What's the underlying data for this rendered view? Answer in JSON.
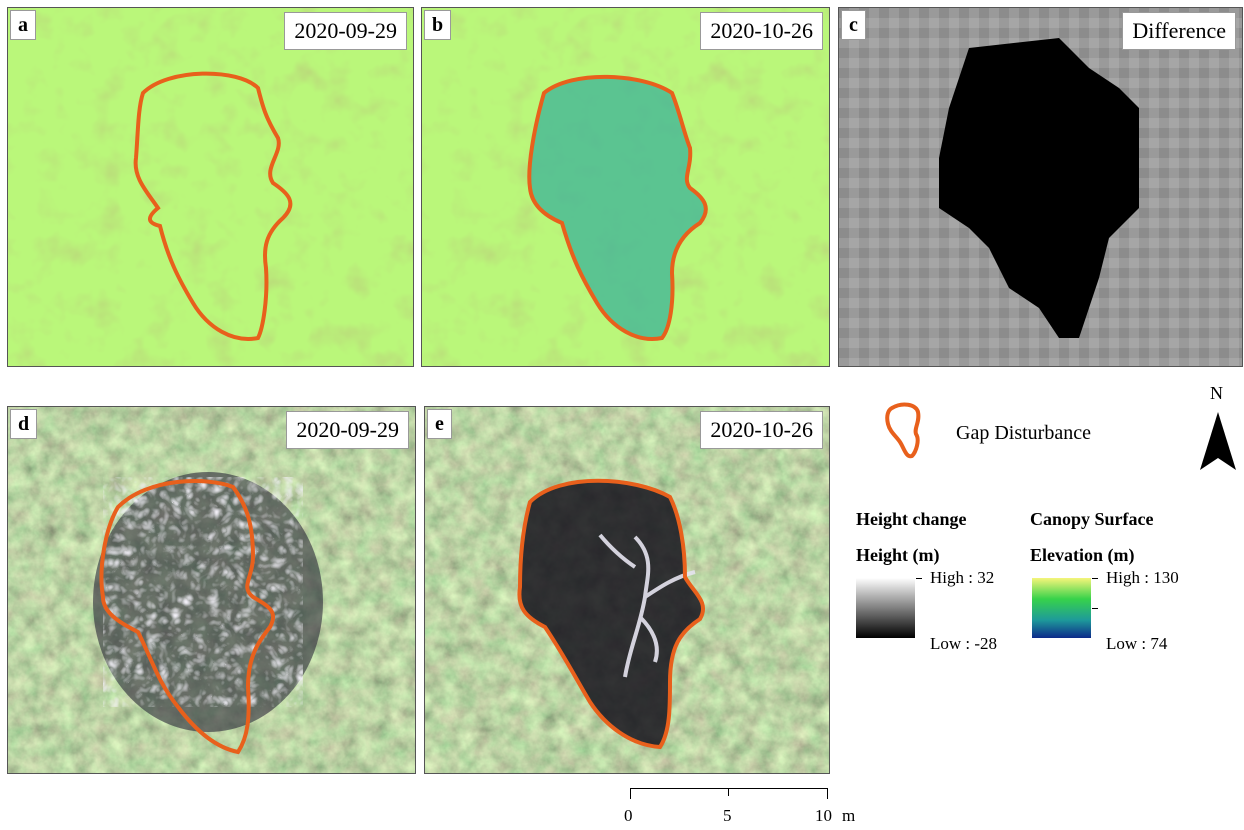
{
  "panels": [
    {
      "letter": "a",
      "label": "2020-09-29"
    },
    {
      "letter": "b",
      "label": "2020-10-26"
    },
    {
      "letter": "c",
      "label": "Difference"
    },
    {
      "letter": "d",
      "label": "2020-09-29"
    },
    {
      "letter": "e",
      "label": "2020-10-26"
    }
  ],
  "legend": {
    "gap_label": "Gap Disturbance",
    "north": "N",
    "height_change": {
      "title": "Height change",
      "subtitle": "Height (m)",
      "high": "High : 32",
      "low": "Low : -28"
    },
    "canopy": {
      "title": "Canopy Surface",
      "subtitle": "Elevation (m)",
      "high": "High : 130",
      "low": "Low : 74"
    }
  },
  "scale_bar": {
    "ticks": [
      "0",
      "5",
      "10"
    ],
    "unit": "m"
  },
  "colors": {
    "outline": "#e8601c",
    "ramp_high": "#f6f57a",
    "ramp_mid": "#37d24a",
    "ramp_low": "#0d2a8a"
  }
}
